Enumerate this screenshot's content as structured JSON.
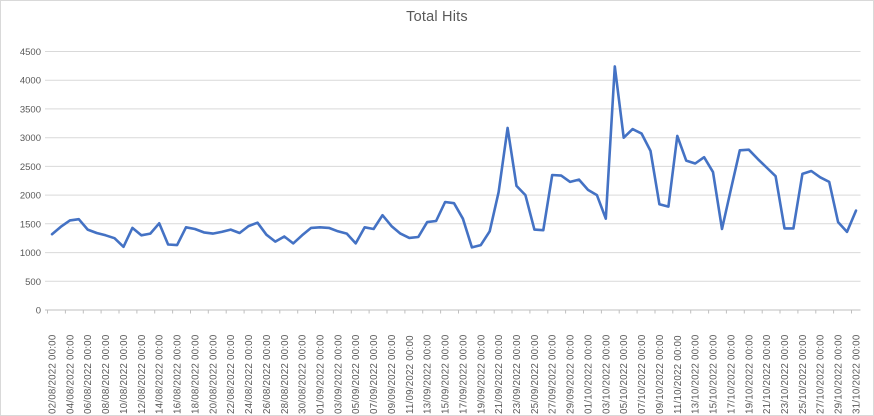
{
  "chart": {
    "accent_color": "#4472C4",
    "grid_color": "#D9D9D9",
    "axis_line_color": "#BFBFBF",
    "axis_text_color": "#595959",
    "title_color": "#595959",
    "background": "#FFFFFF"
  },
  "chart_data": {
    "type": "line",
    "title": "Total Hits",
    "xlabel": "",
    "ylabel": "",
    "ylim": [
      0,
      4500
    ],
    "y_tick_step": 500,
    "y_ticks": [
      0,
      500,
      1000,
      1500,
      2000,
      2500,
      3000,
      3500,
      4000,
      4500
    ],
    "grid": true,
    "legend": "none",
    "x_label_interval": 2,
    "categories": [
      "02/08/2022 00:00",
      "03/08/2022 00:00",
      "04/08/2022 00:00",
      "05/08/2022 00:00",
      "06/08/2022 00:00",
      "07/08/2022 00:00",
      "08/08/2022 00:00",
      "09/08/2022 00:00",
      "10/08/2022 00:00",
      "11/08/2022 00:00",
      "12/08/2022 00:00",
      "13/08/2022 00:00",
      "14/08/2022 00:00",
      "15/08/2022 00:00",
      "16/08/2022 00:00",
      "17/08/2022 00:00",
      "18/08/2022 00:00",
      "19/08/2022 00:00",
      "20/08/2022 00:00",
      "21/08/2022 00:00",
      "22/08/2022 00:00",
      "23/08/2022 00:00",
      "24/08/2022 00:00",
      "25/08/2022 00:00",
      "26/08/2022 00:00",
      "27/08/2022 00:00",
      "28/08/2022 00:00",
      "29/08/2022 00:00",
      "30/08/2022 00:00",
      "31/08/2022 00:00",
      "01/09/2022 00:00",
      "02/09/2022 00:00",
      "03/09/2022 00:00",
      "04/09/2022 00:00",
      "05/09/2022 00:00",
      "06/09/2022 00:00",
      "07/09/2022 00:00",
      "08/09/2022 00:00",
      "09/09/2022 00:00",
      "10/09/2022 00:00",
      "11/09/2022 00:00",
      "12/09/2022 00:00",
      "13/09/2022 00:00",
      "14/09/2022 00:00",
      "15/09/2022 00:00",
      "16/09/2022 00:00",
      "17/09/2022 00:00",
      "18/09/2022 00:00",
      "19/09/2022 00:00",
      "20/09/2022 00:00",
      "21/09/2022 00:00",
      "22/09/2022 00:00",
      "23/09/2022 00:00",
      "24/09/2022 00:00",
      "25/09/2022 00:00",
      "26/09/2022 00:00",
      "27/09/2022 00:00",
      "28/09/2022 00:00",
      "29/09/2022 00:00",
      "30/09/2022 00:00",
      "01/10/2022 00:00",
      "02/10/2022 00:00",
      "03/10/2022 00:00",
      "04/10/2022 00:00",
      "05/10/2022 00:00",
      "06/10/2022 00:00",
      "07/10/2022 00:00",
      "08/10/2022 00:00",
      "09/10/2022 00:00",
      "10/10/2022 00:00",
      "11/10/2022 00:00",
      "12/10/2022 00:00",
      "13/10/2022 00:00",
      "14/10/2022 00:00",
      "15/10/2022 00:00",
      "16/10/2022 00:00",
      "17/10/2022 00:00",
      "18/10/2022 00:00",
      "19/10/2022 00:00",
      "20/10/2022 00:00",
      "21/10/2022 00:00",
      "22/10/2022 00:00",
      "23/10/2022 00:00",
      "24/10/2022 00:00",
      "25/10/2022 00:00",
      "26/10/2022 00:00",
      "27/10/2022 00:00",
      "28/10/2022 00:00",
      "29/10/2022 00:00",
      "30/10/2022 00:00",
      "31/10/2022 00:00"
    ],
    "series": [
      {
        "name": "Total Hits",
        "color": "#4472C4",
        "values": [
          1320,
          1450,
          1560,
          1580,
          1400,
          1340,
          1300,
          1250,
          1100,
          1430,
          1300,
          1330,
          1510,
          1140,
          1130,
          1440,
          1410,
          1350,
          1330,
          1360,
          1400,
          1340,
          1460,
          1520,
          1310,
          1190,
          1280,
          1160,
          1300,
          1430,
          1440,
          1430,
          1370,
          1330,
          1160,
          1440,
          1410,
          1650,
          1460,
          1330,
          1255,
          1270,
          1530,
          1550,
          1880,
          1860,
          1590,
          1090,
          1130,
          1370,
          2050,
          3170,
          2160,
          2000,
          1400,
          1390,
          2350,
          2340,
          2230,
          2270,
          2090,
          2000,
          1590,
          4240,
          3000,
          3150,
          3070,
          2770,
          1840,
          1800,
          3030,
          2600,
          2550,
          2660,
          2400,
          1410,
          2100,
          2780,
          2790,
          2630,
          2480,
          2330,
          1420,
          1420,
          2370,
          2420,
          2310,
          2230,
          1530,
          1360,
          1730
        ]
      }
    ]
  }
}
